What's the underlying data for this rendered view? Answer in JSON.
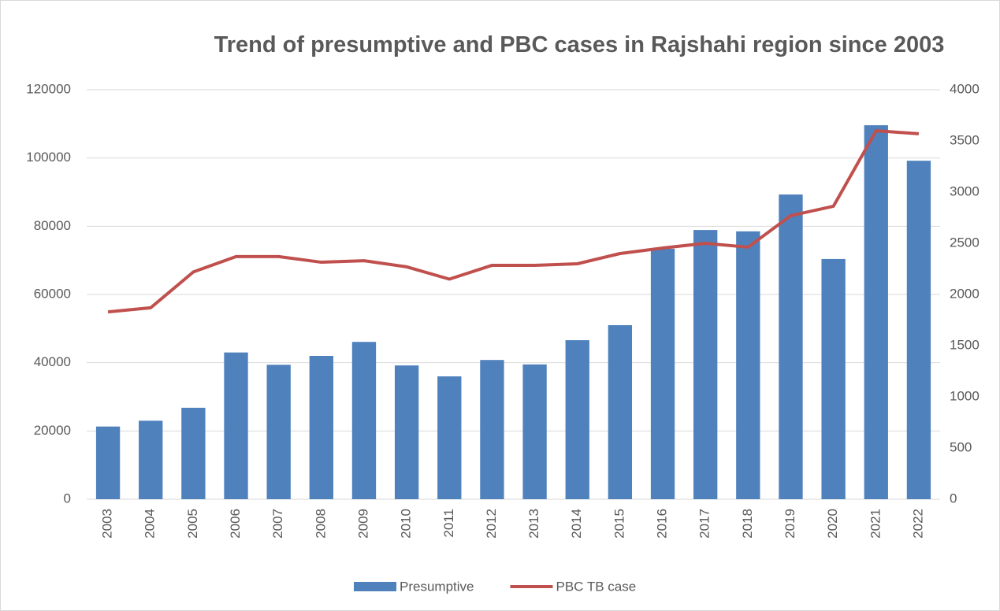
{
  "chart_data": {
    "type": "bar_line",
    "title": "Trend of presumptive and PBC cases in Rajshahi region since 2003",
    "categories": [
      "2003",
      "2004",
      "2005",
      "2006",
      "2007",
      "2008",
      "2009",
      "2010",
      "2011",
      "2012",
      "2013",
      "2014",
      "2015",
      "2016",
      "2017",
      "2018",
      "2019",
      "2020",
      "2021",
      "2022"
    ],
    "series": [
      {
        "name": "Presumptive",
        "type": "bar",
        "color": "#4f81bd",
        "values": [
          21300,
          23000,
          26800,
          43000,
          39400,
          42000,
          46100,
          39200,
          36000,
          40800,
          39500,
          46600,
          51000,
          73400,
          78900,
          78500,
          89300,
          70400,
          109600,
          99200
        ]
      },
      {
        "name": "PBC TB case",
        "type": "line",
        "axis": "y2",
        "color": "#c0504d",
        "values": [
          1830,
          1870,
          2220,
          2370,
          2370,
          2315,
          2330,
          2270,
          2150,
          2285,
          2285,
          2300,
          2400,
          2454,
          2500,
          2462,
          2770,
          2862,
          3600,
          3570
        ]
      }
    ],
    "ylim": [
      0,
      120000
    ],
    "yticks": [
      0,
      20000,
      40000,
      60000,
      80000,
      100000,
      120000
    ],
    "y2lim": [
      0,
      4000
    ],
    "y2ticks": [
      0,
      500,
      1000,
      1500,
      2000,
      2500,
      3000,
      3500,
      4000
    ],
    "grid": true,
    "legend": "bottom"
  }
}
